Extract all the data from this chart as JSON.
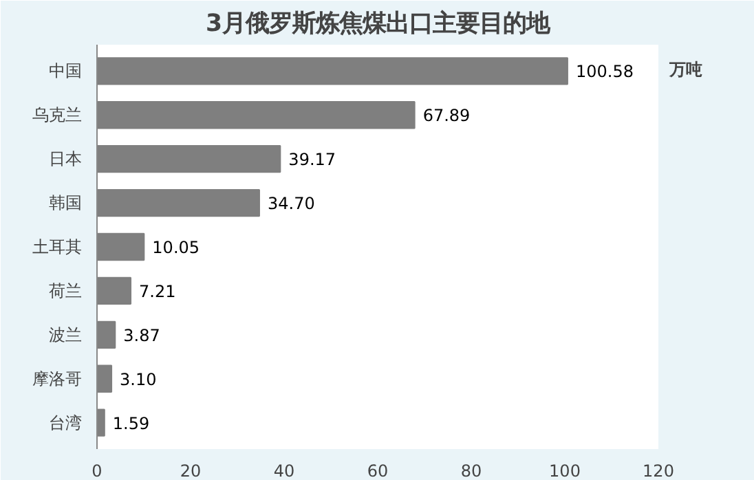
{
  "chart_data": {
    "type": "bar",
    "orientation": "horizontal",
    "title": "3月俄罗斯炼焦煤出口主要目的地",
    "categories": [
      "中国",
      "乌克兰",
      "日本",
      "韩国",
      "土耳其",
      "荷兰",
      "波兰",
      "摩洛哥",
      "台湾"
    ],
    "values": [
      100.58,
      67.89,
      39.17,
      34.7,
      10.05,
      7.21,
      3.87,
      3.1,
      1.59
    ],
    "value_labels": [
      "100.58",
      "67.89",
      "39.17",
      "34.70",
      "10.05",
      "7.21",
      "3.87",
      "3.10",
      "1.59"
    ],
    "color": "#7f7f7f",
    "xlim": [
      0,
      120
    ],
    "xticks": [
      0,
      20,
      40,
      60,
      80,
      100,
      120
    ],
    "grid": false,
    "annotations": [
      "万吨"
    ]
  }
}
